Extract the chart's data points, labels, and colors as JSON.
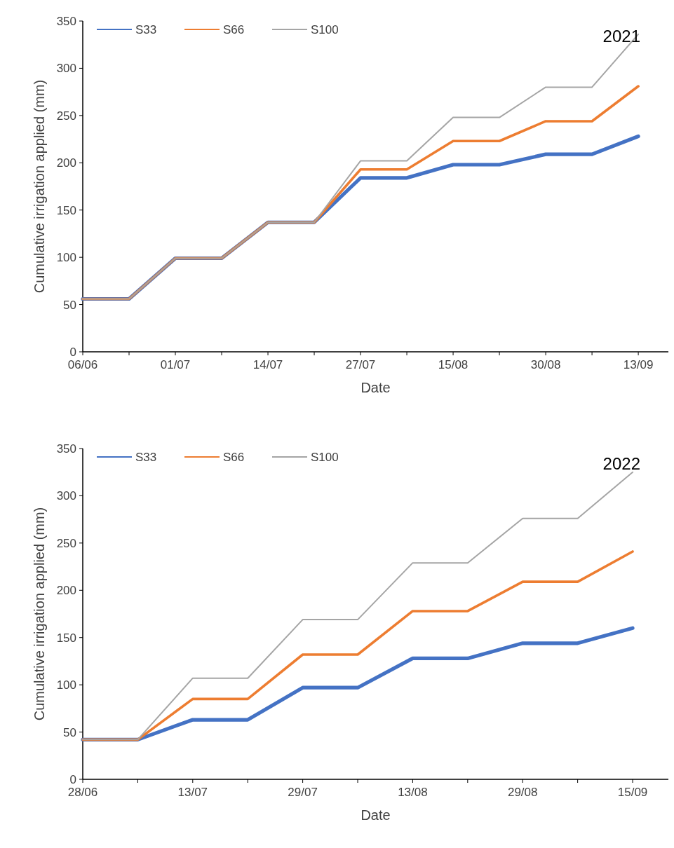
{
  "chart_data": [
    {
      "type": "line",
      "title": "2021",
      "xlabel": "Date",
      "ylabel": "Cumulative irrigation applied (mm)",
      "categories": [
        "06/06",
        null,
        "01/07",
        null,
        "14/07",
        null,
        "27/07",
        null,
        "15/08",
        null,
        "30/08",
        null,
        "13/09"
      ],
      "ylim": [
        0,
        350
      ],
      "yticks": [
        0,
        50,
        100,
        150,
        200,
        250,
        300,
        350
      ],
      "grid": false,
      "legend": "top left",
      "marker": "none",
      "line_style": "solid",
      "series": [
        {
          "name": "S33",
          "color": "#4472c4",
          "values": [
            56,
            56,
            99,
            99,
            137,
            137,
            184,
            184,
            198,
            198,
            209,
            209,
            228
          ]
        },
        {
          "name": "S66",
          "color": "#ed7d31",
          "values": [
            56,
            56,
            99,
            99,
            137,
            137,
            193,
            193,
            223,
            223,
            244,
            244,
            281
          ]
        },
        {
          "name": "S100",
          "color": "#a5a5a5",
          "values": [
            56,
            56,
            99,
            99,
            137,
            137,
            202,
            202,
            248,
            248,
            280,
            280,
            336
          ]
        }
      ]
    },
    {
      "type": "line",
      "title": "2022",
      "xlabel": "Date",
      "ylabel": "Cumulative irrigation applied (mm)",
      "categories": [
        "28/06",
        null,
        "13/07",
        null,
        "29/07",
        null,
        "13/08",
        null,
        "29/08",
        null,
        "15/09"
      ],
      "ylim": [
        0,
        350
      ],
      "yticks": [
        0,
        50,
        100,
        150,
        200,
        250,
        300,
        350
      ],
      "grid": false,
      "legend": "top left",
      "marker": "none",
      "line_style": "solid",
      "series": [
        {
          "name": "S33",
          "color": "#4472c4",
          "values": [
            42,
            42,
            63,
            63,
            97,
            97,
            128,
            128,
            144,
            144,
            160
          ]
        },
        {
          "name": "S66",
          "color": "#ed7d31",
          "values": [
            42,
            42,
            85,
            85,
            132,
            132,
            178,
            178,
            209,
            209,
            241
          ]
        },
        {
          "name": "S100",
          "color": "#a5a5a5",
          "values": [
            42,
            42,
            107,
            107,
            169,
            169,
            229,
            229,
            276,
            276,
            325
          ]
        }
      ]
    }
  ]
}
